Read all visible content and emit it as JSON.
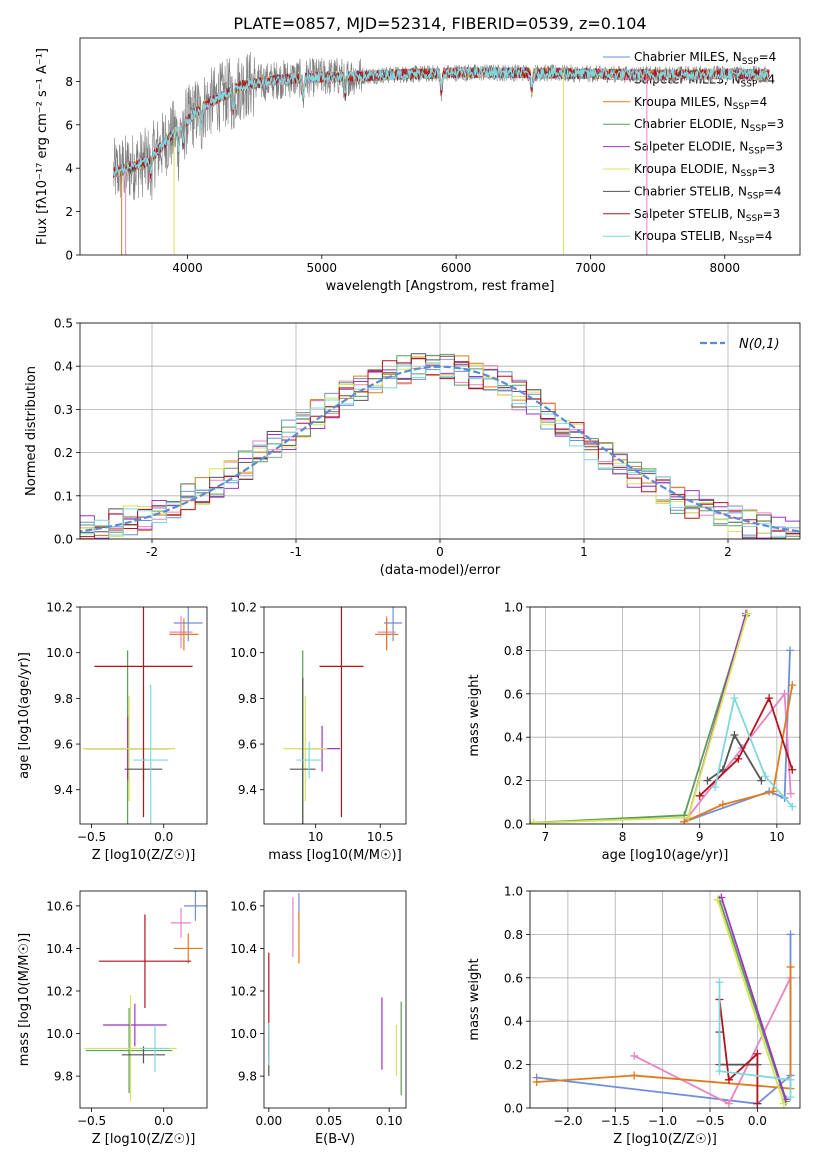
{
  "title": "PLATE=0857, MJD=52314, FIBERID=0539, z=0.104",
  "models": [
    {
      "name": "Chabrier MILES",
      "nssp": "4",
      "color": "#6f8fd9"
    },
    {
      "name": "Salpeter MILES",
      "nssp": "4",
      "color": "#e983c4"
    },
    {
      "name": "Kroupa MILES",
      "nssp": "4",
      "color": "#e07b1e"
    },
    {
      "name": "Chabrier ELODIE",
      "nssp": "3",
      "color": "#5a9e5a"
    },
    {
      "name": "Salpeter ELODIE",
      "nssp": "3",
      "color": "#9b35c4"
    },
    {
      "name": "Kroupa ELODIE",
      "nssp": "3",
      "color": "#d9e35a"
    },
    {
      "name": "Chabrier STELIB",
      "nssp": "4",
      "color": "#555555"
    },
    {
      "name": "Salpeter STELIB",
      "nssp": "3",
      "color": "#b3131b"
    },
    {
      "name": "Kroupa STELIB",
      "nssp": "4",
      "color": "#7fd8dc"
    }
  ],
  "chart_data": [
    {
      "id": "spectrum",
      "type": "line",
      "xlabel": "wavelength [Angstrom, rest frame]",
      "ylabel": "Flux [fλ10⁻¹⁷ erg cm⁻² s⁻¹ A⁻¹]",
      "xlim": [
        3200,
        8560
      ],
      "ylim": [
        0,
        10
      ],
      "xticks": [
        4000,
        5000,
        6000,
        7000,
        8000
      ],
      "yticks": [
        0,
        2,
        4,
        6,
        8
      ],
      "data_range": [
        3450,
        8330
      ],
      "continuum": {
        "x": [
          3450,
          3700,
          3900,
          4100,
          4400,
          4700,
          5000,
          5500,
          6000,
          6500,
          7000,
          7500,
          8000,
          8330
        ],
        "y": [
          3.8,
          4.3,
          5.6,
          6.8,
          7.8,
          8.1,
          8.2,
          8.3,
          8.4,
          8.4,
          8.35,
          8.3,
          8.35,
          8.3
        ]
      },
      "grid": false
    },
    {
      "id": "residuals",
      "type": "histogram",
      "xlabel": "(data-model)/error",
      "ylabel": "Normed distribution",
      "xlim": [
        -2.5,
        2.5
      ],
      "ylim": [
        0,
        0.5
      ],
      "xticks": [
        -2,
        -1,
        0,
        1,
        2
      ],
      "yticks": [
        0.0,
        0.1,
        0.2,
        0.3,
        0.4,
        0.5
      ],
      "legend": "N(0,1)",
      "legend_loc": "upper right",
      "grid": true
    },
    {
      "id": "age_vs_Z",
      "type": "errorbar",
      "xlabel": "Z [log10(Z/Z☉)]",
      "ylabel": "age  [log10(age/yr)]",
      "xlim": [
        -0.58,
        0.3
      ],
      "ylim": [
        9.25,
        10.2
      ],
      "xticks": [
        -0.5,
        0.0
      ],
      "xticklabels": [
        "−0.5",
        "0.0"
      ],
      "yticks": [
        9.4,
        9.6,
        9.8,
        10.0,
        10.2
      ],
      "points": [
        {
          "m": 0,
          "x": 0.17,
          "y": 10.13,
          "xe": 0.1,
          "ye": 0.08
        },
        {
          "m": 1,
          "x": 0.12,
          "y": 10.09,
          "xe": 0.08,
          "ye": 0.07
        },
        {
          "m": 2,
          "x": 0.14,
          "y": 10.08,
          "xe": 0.1,
          "ye": 0.07
        },
        {
          "m": 3,
          "x": -0.25,
          "y": 9.58,
          "xe": 0.3,
          "ye": 0.43
        },
        {
          "m": 4,
          "x": -0.25,
          "y": 9.58,
          "xe": 0.28,
          "ye": 0.14
        },
        {
          "m": 5,
          "x": -0.24,
          "y": 9.58,
          "xe": 0.32,
          "ye": 0.23
        },
        {
          "m": 6,
          "x": -0.14,
          "y": 9.49,
          "xe": 0.13,
          "ye": 0.05
        },
        {
          "m": 7,
          "x": -0.14,
          "y": 9.94,
          "xe": 0.34,
          "ye": 0.66
        },
        {
          "m": 8,
          "x": -0.09,
          "y": 9.53,
          "xe": 0.12,
          "ye": 0.33
        }
      ]
    },
    {
      "id": "age_vs_mass",
      "type": "errorbar",
      "xlabel": "mass [log10(M/M☉)]",
      "ylabel": "",
      "xlim": [
        9.6,
        10.7
      ],
      "ylim": [
        9.25,
        10.2
      ],
      "xticks": [
        10,
        10.5
      ],
      "xticklabels": [
        "10",
        "10.5"
      ],
      "yticks": [
        9.4,
        9.6,
        9.8,
        10.0,
        10.2
      ],
      "points": [
        {
          "m": 0,
          "x": 10.6,
          "y": 10.13,
          "xe": 0.07,
          "ye": 0.08
        },
        {
          "m": 1,
          "x": 10.55,
          "y": 10.09,
          "xe": 0.07,
          "ye": 0.07
        },
        {
          "m": 2,
          "x": 10.55,
          "y": 10.08,
          "xe": 0.09,
          "ye": 0.07
        },
        {
          "m": 3,
          "x": 9.9,
          "y": 9.58,
          "xe": 0.04,
          "ye": 0.43
        },
        {
          "m": 4,
          "x": 10.05,
          "y": 9.58,
          "xe": 0.14,
          "ye": 0.1
        },
        {
          "m": 5,
          "x": 9.92,
          "y": 9.58,
          "xe": 0.17,
          "ye": 0.23
        },
        {
          "m": 6,
          "x": 9.9,
          "y": 9.49,
          "xe": 0.1,
          "ye": 0.4
        },
        {
          "m": 7,
          "x": 10.2,
          "y": 9.94,
          "xe": 0.17,
          "ye": 0.66
        },
        {
          "m": 8,
          "x": 9.95,
          "y": 9.53,
          "xe": 0.1,
          "ye": 0.08
        }
      ]
    },
    {
      "id": "massweight_vs_age",
      "type": "line",
      "xlabel": "age  [log10(age/yr)]",
      "ylabel": "mass weight",
      "xlim": [
        6.8,
        10.3
      ],
      "ylim": [
        0,
        1
      ],
      "xticks": [
        7,
        8,
        9,
        10
      ],
      "yticks": [
        0.0,
        0.2,
        0.4,
        0.6,
        0.8,
        1.0
      ],
      "grid": true,
      "series": [
        {
          "m": 0,
          "x": [
            8.8,
            9.9,
            10.1,
            10.17
          ],
          "y": [
            0.01,
            0.15,
            0.12,
            0.8
          ]
        },
        {
          "m": 1,
          "x": [
            8.8,
            9.55,
            10.1,
            10.18
          ],
          "y": [
            0.01,
            0.35,
            0.6,
            0.14
          ]
        },
        {
          "m": 2,
          "x": [
            8.8,
            9.3,
            9.95,
            10.2
          ],
          "y": [
            0.01,
            0.09,
            0.15,
            0.64
          ]
        },
        {
          "m": 3,
          "x": [
            6.8,
            8.8,
            9.6
          ],
          "y": [
            0.005,
            0.04,
            0.96
          ]
        },
        {
          "m": 4,
          "x": [
            8.85,
            9.6
          ],
          "y": [
            0.03,
            0.97
          ]
        },
        {
          "m": 5,
          "x": [
            6.85,
            8.85,
            9.62
          ],
          "y": [
            0.005,
            0.03,
            0.97
          ]
        },
        {
          "m": 6,
          "x": [
            9.1,
            9.3,
            9.45,
            9.8
          ],
          "y": [
            0.2,
            0.25,
            0.41,
            0.2
          ]
        },
        {
          "m": 7,
          "x": [
            9.0,
            9.5,
            9.9,
            10.2
          ],
          "y": [
            0.13,
            0.3,
            0.58,
            0.25
          ]
        },
        {
          "m": 8,
          "x": [
            9.2,
            9.45,
            9.85,
            10.2
          ],
          "y": [
            0.17,
            0.58,
            0.22,
            0.08
          ]
        }
      ]
    },
    {
      "id": "mass_vs_Z",
      "type": "errorbar",
      "xlabel": "Z [log10(Z/Z☉)]",
      "ylabel": "mass [log10(M/M☉)]",
      "xlim": [
        -0.58,
        0.3
      ],
      "ylim": [
        9.65,
        10.67
      ],
      "xticks": [
        -0.5,
        0.0
      ],
      "xticklabels": [
        "−0.5",
        "0.0"
      ],
      "yticks": [
        9.8,
        10.0,
        10.2,
        10.4,
        10.6
      ],
      "points": [
        {
          "m": 0,
          "x": 0.22,
          "y": 10.6,
          "xe": 0.08,
          "ye": 0.07
        },
        {
          "m": 1,
          "x": 0.12,
          "y": 10.52,
          "xe": 0.07,
          "ye": 0.07
        },
        {
          "m": 2,
          "x": 0.17,
          "y": 10.4,
          "xe": 0.1,
          "ye": 0.07
        },
        {
          "m": 3,
          "x": -0.24,
          "y": 9.92,
          "xe": 0.3,
          "ye": 0.2
        },
        {
          "m": 4,
          "x": -0.2,
          "y": 10.04,
          "xe": 0.22,
          "ye": 0.1
        },
        {
          "m": 5,
          "x": -0.23,
          "y": 9.93,
          "xe": 0.32,
          "ye": 0.25
        },
        {
          "m": 6,
          "x": -0.14,
          "y": 9.9,
          "xe": 0.15,
          "ye": 0.04
        },
        {
          "m": 7,
          "x": -0.13,
          "y": 10.34,
          "xe": 0.32,
          "ye": 0.22
        },
        {
          "m": 8,
          "x": -0.06,
          "y": 9.93,
          "xe": 0.1,
          "ye": 0.11
        }
      ]
    },
    {
      "id": "mass_vs_ebv",
      "type": "errorbar",
      "xlabel": "E(B-V)",
      "ylabel": "",
      "xlim": [
        -0.004,
        0.114
      ],
      "ylim": [
        9.65,
        10.67
      ],
      "xticks": [
        0.0,
        0.05,
        0.1
      ],
      "xticklabels": [
        "0.00",
        "0.05",
        "0.10"
      ],
      "yticks": [
        9.8,
        10.0,
        10.2,
        10.4,
        10.6
      ],
      "points": [
        {
          "m": 0,
          "x": 0.025,
          "y": 10.6,
          "xe": 0,
          "ye": 0.06
        },
        {
          "m": 1,
          "x": 0.02,
          "y": 10.5,
          "xe": 0,
          "ye": 0.14
        },
        {
          "m": 2,
          "x": 0.025,
          "y": 10.45,
          "xe": 0,
          "ye": 0.12
        },
        {
          "m": 3,
          "x": 0.11,
          "y": 9.93,
          "xe": 0,
          "ye": 0.22
        },
        {
          "m": 4,
          "x": 0.094,
          "y": 10.0,
          "xe": 0,
          "ye": 0.17
        },
        {
          "m": 5,
          "x": 0.106,
          "y": 9.92,
          "xe": 0,
          "ye": 0.12
        },
        {
          "m": 6,
          "x": 0.0,
          "y": 9.9,
          "xe": 0,
          "ye": 0.1
        },
        {
          "m": 7,
          "x": 0.0,
          "y": 10.13,
          "xe": 0,
          "ye": 0.25
        },
        {
          "m": 8,
          "x": 0.0,
          "y": 9.95,
          "xe": 0,
          "ye": 0.1
        }
      ]
    },
    {
      "id": "massweight_vs_Z",
      "type": "line",
      "xlabel": "Z [log10(Z/Z☉)]",
      "ylabel": "mass weight",
      "xlim": [
        -2.4,
        0.45
      ],
      "ylim": [
        0,
        1
      ],
      "xticks": [
        -2.0,
        -1.5,
        -1.0,
        -0.5,
        0.0
      ],
      "xticklabels": [
        "−2.0",
        "−1.5",
        "−1.0",
        "−0.5",
        "0.0"
      ],
      "yticks": [
        0.0,
        0.2,
        0.4,
        0.6,
        0.8,
        1.0
      ],
      "grid": true,
      "series": [
        {
          "m": 0,
          "x": [
            -2.33,
            0.0,
            0.35,
            0.35
          ],
          "y": [
            0.14,
            0.02,
            0.15,
            0.8
          ]
        },
        {
          "m": 1,
          "x": [
            -1.3,
            -0.3,
            0.35
          ],
          "y": [
            0.24,
            0.02,
            0.6
          ]
        },
        {
          "m": 2,
          "x": [
            -2.33,
            -1.3,
            0.35,
            0.35
          ],
          "y": [
            0.12,
            0.15,
            0.09,
            0.65
          ]
        },
        {
          "m": 3,
          "x": [
            -0.4,
            0.3
          ],
          "y": [
            0.96,
            0.03
          ]
        },
        {
          "m": 4,
          "x": [
            -0.38,
            0.3
          ],
          "y": [
            0.97,
            0.04
          ]
        },
        {
          "m": 5,
          "x": [
            -0.42,
            0.28
          ],
          "y": [
            0.96,
            0.02
          ]
        },
        {
          "m": 6,
          "x": [
            -0.4,
            -0.4,
            0.0
          ],
          "y": [
            0.35,
            0.2,
            0.2
          ]
        },
        {
          "m": 7,
          "x": [
            -0.4,
            -0.3,
            0.0,
            0.0
          ],
          "y": [
            0.5,
            0.13,
            0.25,
            0.02
          ]
        },
        {
          "m": 8,
          "x": [
            -0.4,
            -0.4,
            0.35,
            0.35
          ],
          "y": [
            0.58,
            0.17,
            0.13,
            0.05
          ]
        }
      ]
    }
  ]
}
